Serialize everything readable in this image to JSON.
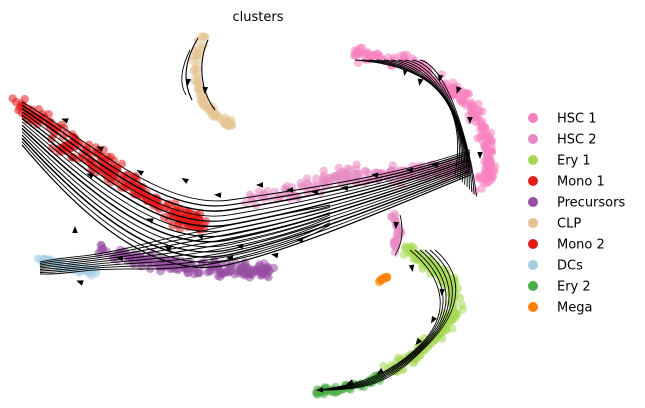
{
  "chart_data": {
    "type": "scatter",
    "title": "clusters",
    "xlabel": "",
    "ylabel": "",
    "axes_visible": false,
    "grid": false,
    "legend_position": "right",
    "overlay": "velocity streamlines with arrowheads",
    "series": [
      {
        "name": "HSC 1",
        "color": "#f781bf"
      },
      {
        "name": "HSC 2",
        "color": "#e78ac3"
      },
      {
        "name": "Ery 1",
        "color": "#a6d854"
      },
      {
        "name": "Mono 1",
        "color": "#e41a1c"
      },
      {
        "name": "Precursors",
        "color": "#984ea3"
      },
      {
        "name": "CLP",
        "color": "#e5c494"
      },
      {
        "name": "Mono 2",
        "color": "#e31a1c"
      },
      {
        "name": "DCs",
        "color": "#a6cee3"
      },
      {
        "name": "Ery 2",
        "color": "#4daf4a"
      },
      {
        "name": "Mega",
        "color": "#ff7f00"
      }
    ]
  }
}
